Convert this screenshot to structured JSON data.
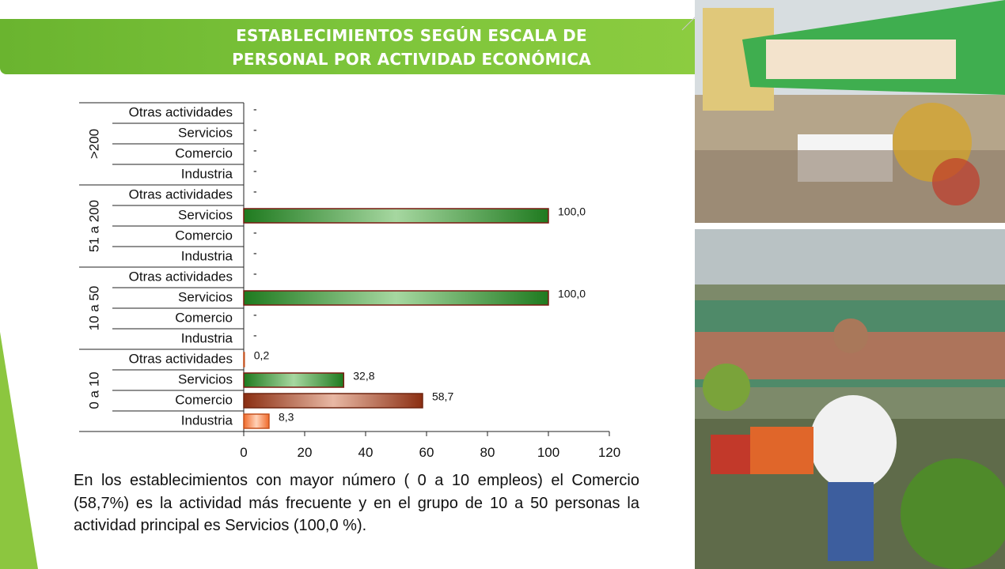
{
  "header": {
    "title_line1": "ESTABLECIMIENTOS SEGÚN ESCALA DE",
    "title_line2": "PERSONAL POR ACTIVIDAD ECONÓMICA"
  },
  "chart_data": {
    "type": "bar",
    "orientation": "horizontal",
    "xlim": [
      0,
      120
    ],
    "x_ticks": [
      "0",
      "20",
      "40",
      "60",
      "80",
      "100",
      "120"
    ],
    "groups": [
      {
        "label": ">200",
        "rows": [
          {
            "category": "Otras actividades",
            "value": null,
            "label": "-"
          },
          {
            "category": "Servicios",
            "value": null,
            "label": "-"
          },
          {
            "category": "Comercio",
            "value": null,
            "label": "-"
          },
          {
            "category": "Industria",
            "value": null,
            "label": "-"
          }
        ]
      },
      {
        "label": "51 a 200",
        "rows": [
          {
            "category": "Otras actividades",
            "value": null,
            "label": "-"
          },
          {
            "category": "Servicios",
            "value": 100.0,
            "label": "100,0"
          },
          {
            "category": "Comercio",
            "value": null,
            "label": "-"
          },
          {
            "category": "Industria",
            "value": null,
            "label": "-"
          }
        ]
      },
      {
        "label": "10 a 50",
        "rows": [
          {
            "category": "Otras actividades",
            "value": null,
            "label": "-"
          },
          {
            "category": "Servicios",
            "value": 100.0,
            "label": "100,0"
          },
          {
            "category": "Comercio",
            "value": null,
            "label": "-"
          },
          {
            "category": "Industria",
            "value": null,
            "label": "-"
          }
        ]
      },
      {
        "label": "0 a 10",
        "rows": [
          {
            "category": "Otras actividades",
            "value": 0.2,
            "label": "0,2"
          },
          {
            "category": "Servicios",
            "value": 32.8,
            "label": "32,8"
          },
          {
            "category": "Comercio",
            "value": 58.7,
            "label": "58,7"
          },
          {
            "category": "Industria",
            "value": 8.3,
            "label": "8,3"
          }
        ]
      }
    ],
    "colors": {
      "Servicios": [
        "#1f7a1f",
        "#a6d7a0"
      ],
      "Comercio": [
        "#8b2e12",
        "#e8b8a4"
      ],
      "Industria": [
        "#f06a2a",
        "#ffd2b8"
      ],
      "Otras actividades": [
        "#7a7a7a",
        "#cccccc"
      ]
    }
  },
  "body_text": "En los establecimientos con mayor número ( 0 a 10 empleos) el Comercio (58,7%) es la actividad más frecuente y en el grupo de 10 a 50 personas la actividad principal es Servicios (100,0 %)."
}
